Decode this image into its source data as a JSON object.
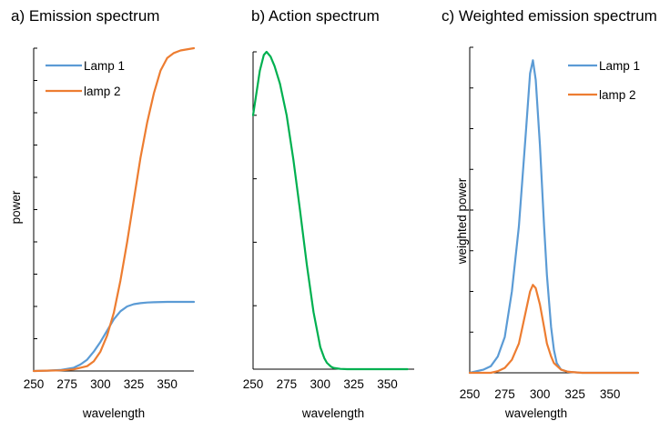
{
  "chart_data": [
    {
      "type": "line",
      "title": "a) Emission spectrum",
      "xlabel": "wavelength",
      "ylabel": "power",
      "xlim": [
        250,
        370
      ],
      "ylim": [
        0,
        1
      ],
      "xticks": [
        250,
        275,
        300,
        325,
        350
      ],
      "y_tick_labels": false,
      "legend": "top-left",
      "series": [
        {
          "name": "Lamp 1",
          "color": "#5b9bd5",
          "x": [
            250,
            260,
            270,
            280,
            285,
            290,
            295,
            300,
            305,
            310,
            315,
            320,
            325,
            330,
            335,
            340,
            350,
            360,
            370
          ],
          "y": [
            0,
            0.001,
            0.003,
            0.01,
            0.02,
            0.035,
            0.06,
            0.09,
            0.125,
            0.16,
            0.185,
            0.2,
            0.207,
            0.21,
            0.212,
            0.213,
            0.214,
            0.214,
            0.214
          ]
        },
        {
          "name": "lamp 2",
          "color": "#ed7d31",
          "x": [
            250,
            260,
            270,
            280,
            290,
            295,
            300,
            305,
            310,
            315,
            320,
            325,
            330,
            335,
            340,
            345,
            350,
            355,
            360,
            370
          ],
          "y": [
            0,
            0.001,
            0.002,
            0.005,
            0.015,
            0.03,
            0.06,
            0.11,
            0.18,
            0.28,
            0.4,
            0.53,
            0.66,
            0.77,
            0.86,
            0.93,
            0.97,
            0.985,
            0.993,
            1.0
          ]
        }
      ]
    },
    {
      "type": "line",
      "title": "b) Action spectrum",
      "xlabel": "wavelength",
      "ylabel": "",
      "xlim": [
        250,
        370
      ],
      "ylim": [
        0,
        1
      ],
      "xticks": [
        250,
        275,
        300,
        325,
        350
      ],
      "y_tick_labels": false,
      "series": [
        {
          "color": "#00b050",
          "x": [
            250,
            255,
            258,
            260,
            263,
            266,
            270,
            275,
            280,
            285,
            290,
            295,
            300,
            303,
            305,
            308,
            310,
            315,
            320,
            330,
            340,
            350,
            365
          ],
          "y": [
            0.8,
            0.94,
            0.99,
            1.0,
            0.985,
            0.955,
            0.9,
            0.8,
            0.66,
            0.5,
            0.33,
            0.18,
            0.07,
            0.035,
            0.02,
            0.008,
            0.004,
            0.001,
            0,
            0,
            0,
            0,
            0
          ]
        }
      ]
    },
    {
      "type": "line",
      "title": "c) Weighted emission spectrum",
      "xlabel": "wavelength",
      "ylabel": "weighted power",
      "xlim": [
        250,
        370
      ],
      "ylim": [
        0,
        1
      ],
      "xticks": [
        250,
        275,
        300,
        325,
        350
      ],
      "y_tick_labels": false,
      "legend": "top-right",
      "series": [
        {
          "name": "Lamp 1",
          "color": "#5b9bd5",
          "x": [
            250,
            260,
            265,
            270,
            275,
            280,
            285,
            290,
            293,
            295,
            297,
            300,
            303,
            305,
            308,
            310,
            312,
            315,
            320,
            330,
            340,
            370
          ],
          "y": [
            0,
            0.01,
            0.02,
            0.05,
            0.11,
            0.25,
            0.45,
            0.74,
            0.92,
            0.96,
            0.9,
            0.7,
            0.45,
            0.3,
            0.14,
            0.07,
            0.03,
            0.01,
            0.003,
            0,
            0,
            0
          ]
        },
        {
          "name": "lamp 2",
          "color": "#ed7d31",
          "x": [
            250,
            265,
            270,
            275,
            280,
            285,
            290,
            293,
            295,
            297,
            300,
            303,
            305,
            308,
            310,
            315,
            320,
            330,
            370
          ],
          "y": [
            0,
            0,
            0.005,
            0.015,
            0.04,
            0.09,
            0.19,
            0.25,
            0.27,
            0.26,
            0.21,
            0.14,
            0.09,
            0.05,
            0.03,
            0.01,
            0.003,
            0,
            0
          ]
        }
      ]
    }
  ]
}
